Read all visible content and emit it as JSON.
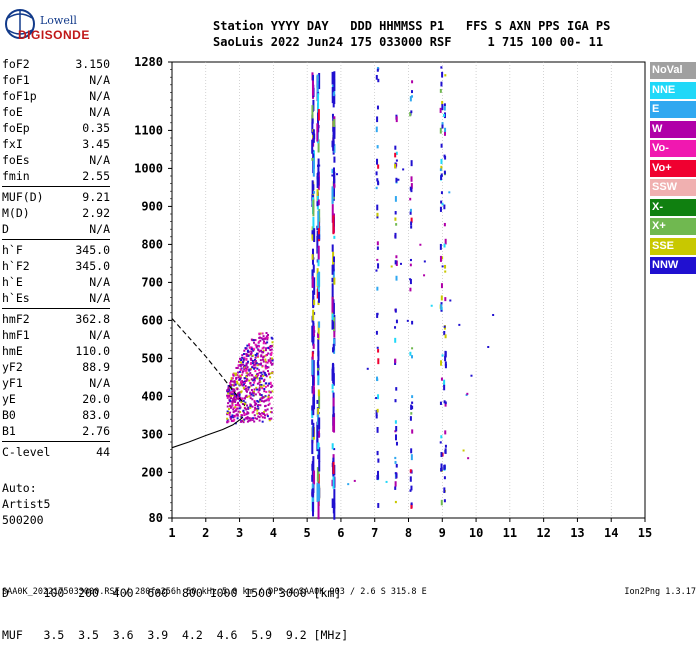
{
  "logo": {
    "line1": "Lowell",
    "line2": "DIGISONDE"
  },
  "header": {
    "line1": "Station YYYY DAY   DDD HHMMSS P1   FFS S AXN PPS IGA PS",
    "line2": "SaoLuis 2022 Jun24 175 033000 RSF     1 715 100 00- 11"
  },
  "params": [
    {
      "label": "foF2",
      "value": "3.150"
    },
    {
      "label": "foF1",
      "value": "N/A"
    },
    {
      "label": "foF1p",
      "value": "N/A"
    },
    {
      "label": "foE",
      "value": "N/A"
    },
    {
      "label": "foEp",
      "value": "0.35"
    },
    {
      "label": "fxI",
      "value": "3.45"
    },
    {
      "label": "foEs",
      "value": "N/A"
    },
    {
      "label": "fmin",
      "value": "2.55"
    },
    {
      "label": "MUF(D)",
      "value": "9.21"
    },
    {
      "label": "M(D)",
      "value": "2.92"
    },
    {
      "label": "D",
      "value": "N/A"
    },
    {
      "label": "h`F",
      "value": "345.0"
    },
    {
      "label": "h`F2",
      "value": "345.0"
    },
    {
      "label": "h`E",
      "value": "N/A"
    },
    {
      "label": "h`Es",
      "value": "N/A"
    },
    {
      "label": "hmF2",
      "value": "362.8"
    },
    {
      "label": "hmF1",
      "value": "N/A"
    },
    {
      "label": "hmE",
      "value": "110.0"
    },
    {
      "label": "yF2",
      "value": "88.9"
    },
    {
      "label": "yF1",
      "value": "N/A"
    },
    {
      "label": "yE",
      "value": "20.0"
    },
    {
      "label": "B0",
      "value": "83.0"
    },
    {
      "label": "B1",
      "value": "2.76"
    },
    {
      "label": "C-level",
      "value": "44"
    }
  ],
  "auto": {
    "line1": "Auto:",
    "line2": "Artist5",
    "line3": "500200"
  },
  "legend": [
    {
      "label": "NoVal",
      "color": "#a0a0a0"
    },
    {
      "label": "NNE",
      "color": "#20d8f8"
    },
    {
      "label": "E",
      "color": "#30a8f0"
    },
    {
      "label": "W",
      "color": "#b000a8"
    },
    {
      "label": "Vo-",
      "color": "#f018b0"
    },
    {
      "label": "Vo+",
      "color": "#f00030"
    },
    {
      "label": "SSW",
      "color": "#f0b0b0"
    },
    {
      "label": "X-",
      "color": "#108010"
    },
    {
      "label": "X+",
      "color": "#70b850"
    },
    {
      "label": "SSE",
      "color": "#c8c800"
    },
    {
      "label": "NNW",
      "color": "#2010d0"
    }
  ],
  "bottom": {
    "line1": "D     100  200  400  600  800 1000 1500 3000 [km]",
    "line2": "MUF   3.5  3.5  3.6  3.9  4.2  4.6  5.9  9.2 [MHz]"
  },
  "footer": {
    "left": "SAA0K_2022175033000.RSF / 280fx256h 50 kHz 5.0 km / DPS-4 SAA0K 903 / 2.6 S 315.8 E",
    "right": "Ion2Png 1.3.17"
  },
  "chart_data": {
    "type": "scatter",
    "title": "",
    "xlabel": "",
    "ylabel": "",
    "xlim": [
      1,
      15
    ],
    "ylim": [
      80,
      1280
    ],
    "x_ticks": [
      1,
      2,
      3,
      4,
      5,
      6,
      7,
      8,
      9,
      10,
      11,
      12,
      13,
      14,
      15
    ],
    "y_ticks": [
      80,
      200,
      300,
      400,
      500,
      600,
      700,
      800,
      900,
      1000,
      1100,
      1280
    ],
    "grid": "vertical",
    "interference_lines_mhz": [
      5.15,
      5.3,
      5.75,
      7.05,
      7.6,
      8.05,
      8.95,
      9.05
    ],
    "profile_curve": {
      "style": "solid",
      "points": [
        [
          1.0,
          265
        ],
        [
          1.5,
          280
        ],
        [
          2.0,
          297
        ],
        [
          2.5,
          313
        ],
        [
          2.8,
          325
        ],
        [
          3.0,
          338
        ],
        [
          3.1,
          345
        ]
      ]
    },
    "virtual_curve": {
      "style": "dashed",
      "points": [
        [
          1.0,
          605
        ],
        [
          1.5,
          555
        ],
        [
          2.0,
          505
        ],
        [
          2.5,
          450
        ],
        [
          2.9,
          405
        ],
        [
          3.1,
          385
        ],
        [
          3.15,
          375
        ]
      ]
    },
    "echo_region": {
      "freq_range_mhz": [
        2.6,
        3.95
      ],
      "height_range_km": [
        330,
        575
      ],
      "dominant_color": "#b000a8"
    }
  }
}
